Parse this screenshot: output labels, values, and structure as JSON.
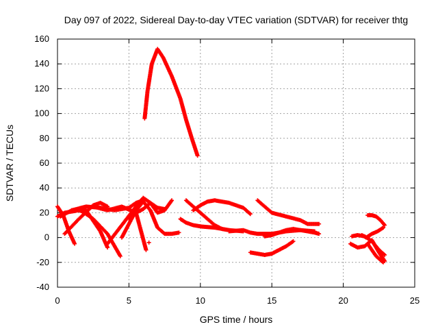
{
  "chart_data": {
    "type": "scatter",
    "title": "Day 097 of 2022, Sidereal Day-to-day VTEC variation (SDTVAR) for receiver thtg",
    "xlabel": "GPS time / hours",
    "ylabel": "SDTVAR / TECUs",
    "xlim": [
      0,
      25
    ],
    "ylim": [
      -40,
      160
    ],
    "xticks": [
      0,
      5,
      10,
      15,
      20,
      25
    ],
    "yticks": [
      -40,
      -20,
      0,
      20,
      40,
      60,
      80,
      100,
      120,
      140,
      160
    ],
    "grid": true,
    "marker": "+",
    "color": "#ff0000",
    "series": [
      {
        "x": [
          6.1,
          6.3,
          6.6,
          7.0,
          7.4,
          8.0,
          8.6,
          9.0,
          9.4,
          9.8
        ],
        "y": [
          96,
          118,
          140,
          152,
          145,
          130,
          112,
          95,
          80,
          66
        ]
      },
      {
        "x": [
          0.0,
          0.4,
          0.8,
          1.2
        ],
        "y": [
          25,
          18,
          5,
          -5
        ]
      },
      {
        "x": [
          0.0,
          0.5,
          1.0,
          1.5,
          2.0
        ],
        "y": [
          17,
          20,
          21,
          22,
          20
        ]
      },
      {
        "x": [
          0.5,
          1.5,
          2.5,
          3.0,
          3.5
        ],
        "y": [
          3,
          15,
          26,
          28,
          25
        ]
      },
      {
        "x": [
          1.0,
          2.0,
          3.0,
          4.0,
          5.0,
          5.5,
          6.0
        ],
        "y": [
          22,
          25,
          24,
          22,
          24,
          28,
          30
        ]
      },
      {
        "x": [
          0.2,
          1.0,
          2.0,
          3.0,
          3.5
        ],
        "y": [
          17,
          22,
          22,
          5,
          -8
        ]
      },
      {
        "x": [
          1.5,
          2.5,
          3.5,
          4.4
        ],
        "y": [
          23,
          15,
          3,
          -15
        ]
      },
      {
        "x": [
          2.5,
          3.5,
          4.5,
          5.5,
          6.2
        ],
        "y": [
          25,
          22,
          25,
          20,
          -10
        ]
      },
      {
        "x": [
          3.5,
          4.5,
          5.5,
          6.0,
          6.5,
          7.0,
          7.5,
          8.0
        ],
        "y": [
          -5,
          10,
          25,
          32,
          28,
          20,
          22,
          30
        ]
      },
      {
        "x": [
          4.5,
          5.5,
          6.0,
          6.5,
          7.0,
          7.5,
          8.0,
          8.5
        ],
        "y": [
          0,
          22,
          29,
          22,
          8,
          3,
          3,
          4
        ]
      },
      {
        "x": [
          5.0,
          5.5,
          6.0,
          6.5,
          7.0,
          7.5
        ],
        "y": [
          15,
          20,
          23,
          28,
          24,
          23
        ]
      },
      {
        "x": [
          6.4
        ],
        "y": [
          -4
        ]
      },
      {
        "x": [
          8.6,
          9.0,
          9.5,
          10.0,
          11.0,
          12.0,
          13.0
        ],
        "y": [
          15,
          12,
          10,
          9,
          8,
          6,
          5
        ]
      },
      {
        "x": [
          9.0,
          9.5,
          10.0,
          10.5,
          11.0,
          11.5,
          12.0
        ],
        "y": [
          30,
          25,
          20,
          15,
          10,
          7,
          6
        ]
      },
      {
        "x": [
          9.5,
          10.0,
          10.5,
          11.0,
          11.5,
          12.0,
          12.5,
          13.0,
          13.5
        ],
        "y": [
          22,
          26,
          29,
          30,
          29,
          28,
          26,
          24,
          19
        ]
      },
      {
        "x": [
          12.0,
          13.0,
          13.5,
          14.0,
          15.0,
          15.5,
          16.0,
          17.0,
          18.0
        ],
        "y": [
          5,
          6,
          4,
          3,
          3,
          4,
          5,
          6,
          5
        ]
      },
      {
        "x": [
          13.5,
          14.0,
          14.5,
          15.0,
          15.5,
          16.0,
          16.5
        ],
        "y": [
          -12,
          -13,
          -14,
          -13,
          -10,
          -7,
          -3
        ]
      },
      {
        "x": [
          14.0,
          14.5,
          15.0,
          16.0,
          17.0,
          17.5,
          18.3
        ],
        "y": [
          30,
          25,
          20,
          17,
          14,
          11,
          11
        ]
      },
      {
        "x": [
          14.5,
          15.0,
          15.5,
          16.0,
          16.5,
          17.0,
          17.5,
          18.0,
          18.3
        ],
        "y": [
          1,
          2,
          4,
          6,
          7,
          6,
          5,
          4,
          3
        ]
      },
      {
        "x": [
          20.5,
          21.0,
          21.5,
          22.0,
          22.5,
          22.9
        ],
        "y": [
          -5,
          -8,
          -7,
          -2,
          -12,
          -19
        ]
      },
      {
        "x": [
          20.6,
          21.0,
          21.5,
          22.0,
          22.5,
          22.9
        ],
        "y": [
          1,
          2,
          1,
          -3,
          -10,
          -14
        ]
      },
      {
        "x": [
          21.3,
          21.6,
          22.0,
          22.4,
          22.8
        ],
        "y": [
          2,
          0,
          3,
          5,
          8
        ]
      },
      {
        "x": [
          21.7,
          22.0,
          22.3,
          22.6,
          22.8
        ],
        "y": [
          -5,
          -10,
          -15,
          -18,
          -20
        ]
      },
      {
        "x": [
          21.7,
          22.0,
          22.3,
          22.6,
          22.9
        ],
        "y": [
          18,
          18,
          17,
          14,
          10
        ]
      }
    ]
  }
}
